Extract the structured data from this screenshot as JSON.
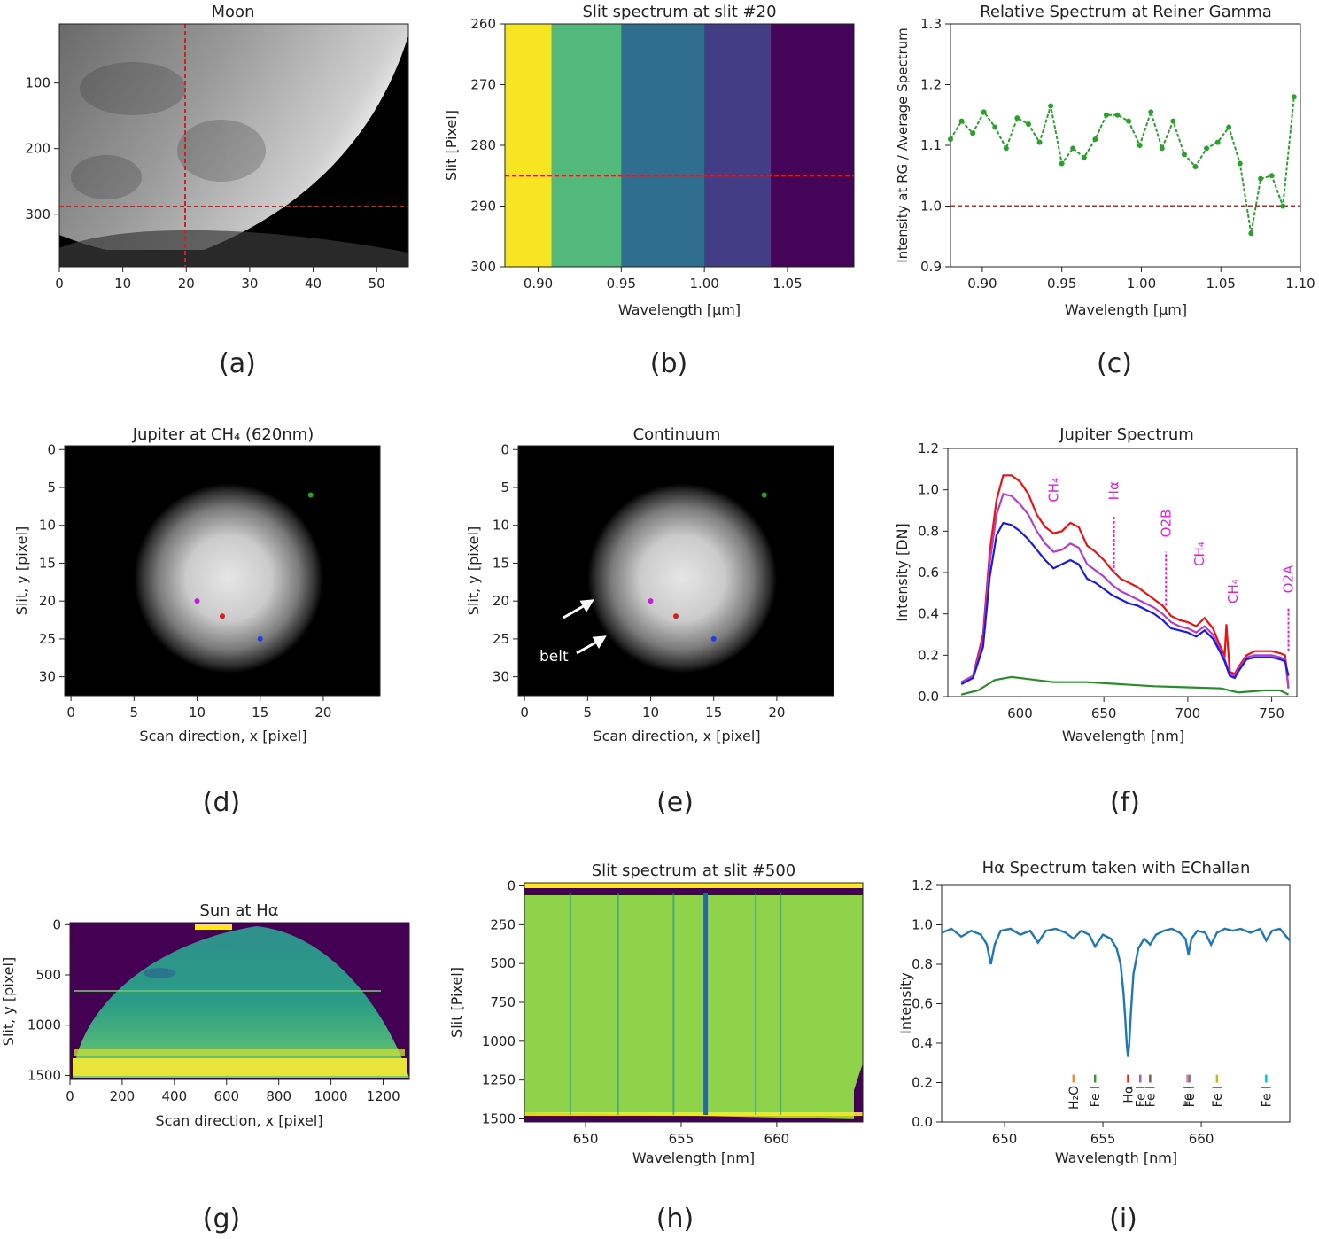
{
  "figure": {
    "panel_letters": [
      "(a)",
      "(b)",
      "(c)",
      "(d)",
      "(e)",
      "(f)",
      "(g)",
      "(h)",
      "(i)"
    ]
  },
  "chart_data": [
    {
      "id": "a",
      "type": "heatmap",
      "title": "Moon",
      "xlabel": "",
      "ylabel": "",
      "xlim": [
        0,
        55
      ],
      "ylim": [
        380,
        10
      ],
      "x_ticks": [
        0,
        10,
        20,
        30,
        40,
        50
      ],
      "y_ticks": [
        100,
        200,
        300
      ],
      "markers": {
        "vertical_line_x": 20,
        "horizontal_line_y": 285,
        "line_color": "#e0191b"
      }
    },
    {
      "id": "b",
      "type": "heatmap",
      "title": "Slit spectrum at slit #20",
      "xlabel": "Wavelength [μm]",
      "ylabel": "Slit [Pixel]",
      "xlim": [
        0.88,
        1.09
      ],
      "ylim": [
        300,
        260
      ],
      "x_ticks": [
        0.9,
        0.95,
        1.0,
        1.05
      ],
      "x_tick_labels": [
        "0.90",
        "0.95",
        "1.00",
        "1.05"
      ],
      "y_ticks": [
        260,
        270,
        280,
        290,
        300
      ],
      "bands": [
        {
          "from": 0.88,
          "to": 0.908,
          "color": "#f6e520"
        },
        {
          "from": 0.908,
          "to": 0.95,
          "color": "#52b87c"
        },
        {
          "from": 0.95,
          "to": 1.0,
          "color": "#2f6e8e"
        },
        {
          "from": 1.0,
          "to": 1.04,
          "color": "#433d86"
        },
        {
          "from": 1.04,
          "to": 1.09,
          "color": "#440558"
        }
      ],
      "markers": {
        "horizontal_line_y": 285,
        "line_color": "#e0191b"
      }
    },
    {
      "id": "c",
      "type": "line",
      "title": "Relative Spectrum at Reiner Gamma",
      "xlabel": "Wavelength [μm]",
      "ylabel": "Intensity at RG / Average Spectrum",
      "xlim": [
        0.88,
        1.1
      ],
      "ylim": [
        0.9,
        1.3
      ],
      "x_ticks": [
        0.9,
        0.95,
        1.0,
        1.05,
        1.1
      ],
      "x_tick_labels": [
        "0.90",
        "0.95",
        "1.00",
        "1.05",
        "1.10"
      ],
      "y_ticks": [
        0.9,
        1.0,
        1.1,
        1.2,
        1.3
      ],
      "y_tick_labels": [
        "0.9",
        "1.0",
        "1.1",
        "1.2",
        "1.3"
      ],
      "reference_line_y": 1.0,
      "series": [
        {
          "color": "#2ca02c",
          "x": [
            0.88,
            0.887,
            0.894,
            0.901,
            0.908,
            0.915,
            0.922,
            0.929,
            0.936,
            0.943,
            0.95,
            0.957,
            0.964,
            0.971,
            0.978,
            0.985,
            0.992,
            0.999,
            1.006,
            1.013,
            1.02,
            1.027,
            1.034,
            1.041,
            1.048,
            1.055,
            1.062,
            1.069,
            1.075,
            1.082,
            1.089,
            1.096
          ],
          "y": [
            1.11,
            1.14,
            1.12,
            1.155,
            1.13,
            1.095,
            1.145,
            1.135,
            1.105,
            1.165,
            1.07,
            1.095,
            1.08,
            1.11,
            1.15,
            1.15,
            1.14,
            1.1,
            1.155,
            1.095,
            1.14,
            1.085,
            1.065,
            1.095,
            1.105,
            1.13,
            1.07,
            0.955,
            1.045,
            1.05,
            1.0,
            1.18
          ]
        }
      ]
    },
    {
      "id": "d",
      "type": "heatmap",
      "title": "Jupiter at CH₄ (620nm)",
      "xlabel": "Scan direction, x [pixel]",
      "ylabel": "Slit, y [pixel]",
      "xlim": [
        -0.5,
        24.5
      ],
      "ylim": [
        32.5,
        -0.5
      ],
      "x_ticks": [
        0,
        5,
        10,
        15,
        20
      ],
      "y_ticks": [
        0,
        5,
        10,
        15,
        20,
        25,
        30
      ],
      "disk": {
        "cx": 12.5,
        "cy": 17,
        "radius": 7.5
      },
      "points": [
        {
          "x": 19,
          "y": 6,
          "color": "#2ca02c"
        },
        {
          "x": 10,
          "y": 20,
          "color": "#c41ed6"
        },
        {
          "x": 12,
          "y": 22,
          "color": "#e0191b"
        },
        {
          "x": 15,
          "y": 25,
          "color": "#1f3fe6"
        }
      ]
    },
    {
      "id": "e",
      "type": "heatmap",
      "title": "Continuum",
      "xlabel": "Scan direction, x [pixel]",
      "ylabel": "Slit, y [pixel]",
      "xlim": [
        -0.5,
        24.5
      ],
      "ylim": [
        32.5,
        -0.5
      ],
      "x_ticks": [
        0,
        5,
        10,
        15,
        20
      ],
      "y_ticks": [
        0,
        5,
        10,
        15,
        20,
        25,
        30
      ],
      "disk": {
        "cx": 12.5,
        "cy": 17,
        "radius": 7.5
      },
      "annotation": "belt",
      "points": [
        {
          "x": 19,
          "y": 6,
          "color": "#2ca02c"
        },
        {
          "x": 10,
          "y": 20,
          "color": "#c41ed6"
        },
        {
          "x": 12,
          "y": 22,
          "color": "#e0191b"
        },
        {
          "x": 15,
          "y": 25,
          "color": "#1f3fe6"
        }
      ]
    },
    {
      "id": "f",
      "type": "line",
      "title": "Jupiter Spectrum",
      "xlabel": "Wavelength [nm]",
      "ylabel": "Intensity [DN]",
      "xlim": [
        557,
        765
      ],
      "ylim": [
        0,
        1.2
      ],
      "x_ticks": [
        600,
        650,
        700,
        750
      ],
      "y_ticks": [
        0,
        0.2,
        0.4,
        0.6,
        0.8,
        1.0,
        1.2
      ],
      "y_tick_labels": [
        "0.0",
        "0.2",
        "0.4",
        "0.6",
        "0.8",
        "1.0",
        "1.2"
      ],
      "annotations": [
        {
          "label": "CH₄",
          "x": 620,
          "text_y": 0.94
        },
        {
          "label": "Hα",
          "x": 656,
          "text_y": 0.95,
          "line_from": 0.6,
          "line_to": 0.87
        },
        {
          "label": "O2B",
          "x": 687,
          "text_y": 0.77,
          "line_from": 0.44,
          "line_to": 0.7
        },
        {
          "label": "CH₄",
          "x": 707,
          "text_y": 0.63
        },
        {
          "label": "CH₄",
          "x": 727,
          "text_y": 0.45
        },
        {
          "label": "O2A",
          "x": 760,
          "text_y": 0.5,
          "line_from": 0.22,
          "line_to": 0.43
        }
      ],
      "series": [
        {
          "color": "#ee1111",
          "x": [
            565,
            572,
            578,
            582,
            586,
            590,
            595,
            600,
            605,
            610,
            615,
            620,
            625,
            630,
            635,
            640,
            645,
            650,
            655,
            660,
            665,
            670,
            675,
            680,
            685,
            690,
            695,
            700,
            705,
            710,
            715,
            719,
            722,
            723,
            725,
            728,
            730,
            735,
            740,
            745,
            750,
            755,
            758,
            760
          ],
          "y": [
            0.07,
            0.1,
            0.3,
            0.7,
            0.95,
            1.07,
            1.07,
            1.04,
            0.98,
            0.88,
            0.82,
            0.79,
            0.8,
            0.84,
            0.82,
            0.73,
            0.7,
            0.66,
            0.61,
            0.57,
            0.55,
            0.53,
            0.5,
            0.47,
            0.44,
            0.39,
            0.37,
            0.36,
            0.34,
            0.38,
            0.33,
            0.25,
            0.2,
            0.35,
            0.12,
            0.11,
            0.14,
            0.2,
            0.22,
            0.22,
            0.22,
            0.21,
            0.2,
            0.04
          ]
        },
        {
          "color": "#b53ec9",
          "x": [
            565,
            572,
            578,
            582,
            586,
            590,
            595,
            600,
            605,
            610,
            615,
            620,
            625,
            630,
            635,
            640,
            645,
            650,
            655,
            660,
            665,
            670,
            675,
            680,
            685,
            690,
            695,
            700,
            705,
            710,
            715,
            719,
            722,
            725,
            728,
            730,
            735,
            740,
            745,
            750,
            755,
            758,
            760
          ],
          "y": [
            0.07,
            0.1,
            0.27,
            0.65,
            0.88,
            0.98,
            0.97,
            0.93,
            0.88,
            0.8,
            0.74,
            0.7,
            0.71,
            0.74,
            0.72,
            0.64,
            0.61,
            0.58,
            0.54,
            0.51,
            0.49,
            0.47,
            0.45,
            0.43,
            0.4,
            0.36,
            0.34,
            0.33,
            0.31,
            0.34,
            0.3,
            0.23,
            0.18,
            0.11,
            0.1,
            0.13,
            0.19,
            0.2,
            0.2,
            0.2,
            0.19,
            0.18,
            0.04
          ]
        },
        {
          "color": "#1a1ae6",
          "x": [
            565,
            572,
            578,
            582,
            586,
            590,
            595,
            600,
            605,
            610,
            615,
            620,
            625,
            630,
            635,
            640,
            645,
            650,
            655,
            660,
            665,
            670,
            675,
            680,
            685,
            690,
            695,
            700,
            705,
            710,
            715,
            719,
            722,
            725,
            728,
            730,
            735,
            740,
            745,
            750,
            755,
            758,
            760
          ],
          "y": [
            0.06,
            0.09,
            0.24,
            0.58,
            0.78,
            0.84,
            0.83,
            0.8,
            0.76,
            0.71,
            0.66,
            0.62,
            0.64,
            0.66,
            0.64,
            0.57,
            0.55,
            0.52,
            0.49,
            0.47,
            0.45,
            0.44,
            0.42,
            0.4,
            0.37,
            0.33,
            0.32,
            0.31,
            0.29,
            0.32,
            0.28,
            0.22,
            0.17,
            0.1,
            0.09,
            0.12,
            0.18,
            0.19,
            0.19,
            0.19,
            0.18,
            0.17,
            0.1
          ]
        },
        {
          "color": "#2a8c2a",
          "x": [
            565,
            575,
            585,
            595,
            605,
            620,
            640,
            660,
            680,
            700,
            720,
            730,
            745,
            755,
            760
          ],
          "y": [
            0.01,
            0.03,
            0.08,
            0.095,
            0.085,
            0.07,
            0.07,
            0.06,
            0.05,
            0.045,
            0.04,
            0.02,
            0.03,
            0.03,
            0.01
          ]
        }
      ]
    },
    {
      "id": "g",
      "type": "heatmap",
      "title": "Sun at Hα",
      "xlabel": "Scan direction, x [pixel]",
      "ylabel": "Slit, y [pixel]",
      "xlim": [
        0,
        1300
      ],
      "ylim": [
        1540,
        -20
      ],
      "x_ticks": [
        0,
        200,
        400,
        600,
        800,
        1000,
        1200
      ],
      "y_ticks": [
        0,
        500,
        1000,
        1500
      ],
      "colors": {
        "background": "#440154",
        "disk": "#2b8b8c",
        "bright": "#fde725"
      }
    },
    {
      "id": "h",
      "type": "heatmap",
      "title": "Slit spectrum at slit #500",
      "xlabel": "Wavelength [nm]",
      "ylabel": "Slit [Pixel]",
      "xlim": [
        646.8,
        664.5
      ],
      "ylim": [
        1520,
        -20
      ],
      "x_ticks": [
        650,
        655,
        660
      ],
      "y_ticks": [
        0,
        250,
        500,
        750,
        1000,
        1250,
        1500
      ],
      "absorption_lines": [
        649.2,
        651.7,
        654.6,
        656.28,
        658.9,
        660.2
      ],
      "colors": {
        "field": "#8ed24a",
        "line": "#21918c",
        "edge": "#440154",
        "bright": "#fde725"
      }
    },
    {
      "id": "i",
      "type": "line",
      "title": "Hα Spectrum taken with EChallan",
      "xlabel": "Wavelength [nm]",
      "ylabel": "Intensity",
      "xlim": [
        646.8,
        664.5
      ],
      "ylim": [
        0,
        1.2
      ],
      "x_ticks": [
        650,
        655,
        660
      ],
      "y_ticks": [
        0,
        0.2,
        0.4,
        0.6,
        0.8,
        1.0,
        1.2
      ],
      "y_tick_labels": [
        "0.0",
        "0.2",
        "0.4",
        "0.6",
        "0.8",
        "1.0",
        "1.2"
      ],
      "line_ids": [
        {
          "label": "H₂O",
          "x": 653.5,
          "color": "#f28e2b"
        },
        {
          "label": "Fe I",
          "x": 654.6,
          "color": "#2ca02c"
        },
        {
          "label": "Hα",
          "x": 656.28,
          "color": "#d62728"
        },
        {
          "label": "Fe I",
          "x": 656.9,
          "color": "#9467bd"
        },
        {
          "label": "Fe I",
          "x": 657.4,
          "color": "#8c564b"
        },
        {
          "label": "Fe I",
          "x": 659.3,
          "color": "#e377c2"
        },
        {
          "label": "Fe I",
          "x": 659.4,
          "color": "#7f7f7f"
        },
        {
          "label": "Fe I",
          "x": 660.8,
          "color": "#bcbd22"
        },
        {
          "label": "Fe I",
          "x": 663.3,
          "color": "#17becf"
        }
      ],
      "series": [
        {
          "color": "#1f77b4",
          "x": [
            646.8,
            647.3,
            647.8,
            648.3,
            648.8,
            649.1,
            649.3,
            649.5,
            649.8,
            650.3,
            650.8,
            651.3,
            651.7,
            652.1,
            652.6,
            653.1,
            653.5,
            653.9,
            654.3,
            654.6,
            655.0,
            655.4,
            655.7,
            655.9,
            656.05,
            656.15,
            656.22,
            656.28,
            656.34,
            656.42,
            656.55,
            656.8,
            657.1,
            657.4,
            657.7,
            658.1,
            658.5,
            658.9,
            659.2,
            659.35,
            659.5,
            659.8,
            660.2,
            660.5,
            660.8,
            661.2,
            661.6,
            662.0,
            662.5,
            663.0,
            663.3,
            663.6,
            664.0,
            664.5
          ],
          "y": [
            0.96,
            0.98,
            0.94,
            0.97,
            0.95,
            0.9,
            0.8,
            0.9,
            0.97,
            0.98,
            0.95,
            0.97,
            0.91,
            0.97,
            0.98,
            0.96,
            0.93,
            0.97,
            0.95,
            0.89,
            0.95,
            0.93,
            0.88,
            0.8,
            0.65,
            0.5,
            0.38,
            0.33,
            0.4,
            0.55,
            0.75,
            0.88,
            0.93,
            0.9,
            0.95,
            0.97,
            0.98,
            0.96,
            0.93,
            0.85,
            0.93,
            0.97,
            0.96,
            0.9,
            0.96,
            0.98,
            0.97,
            0.98,
            0.96,
            0.98,
            0.92,
            0.97,
            0.98,
            0.92
          ]
        }
      ]
    }
  ]
}
